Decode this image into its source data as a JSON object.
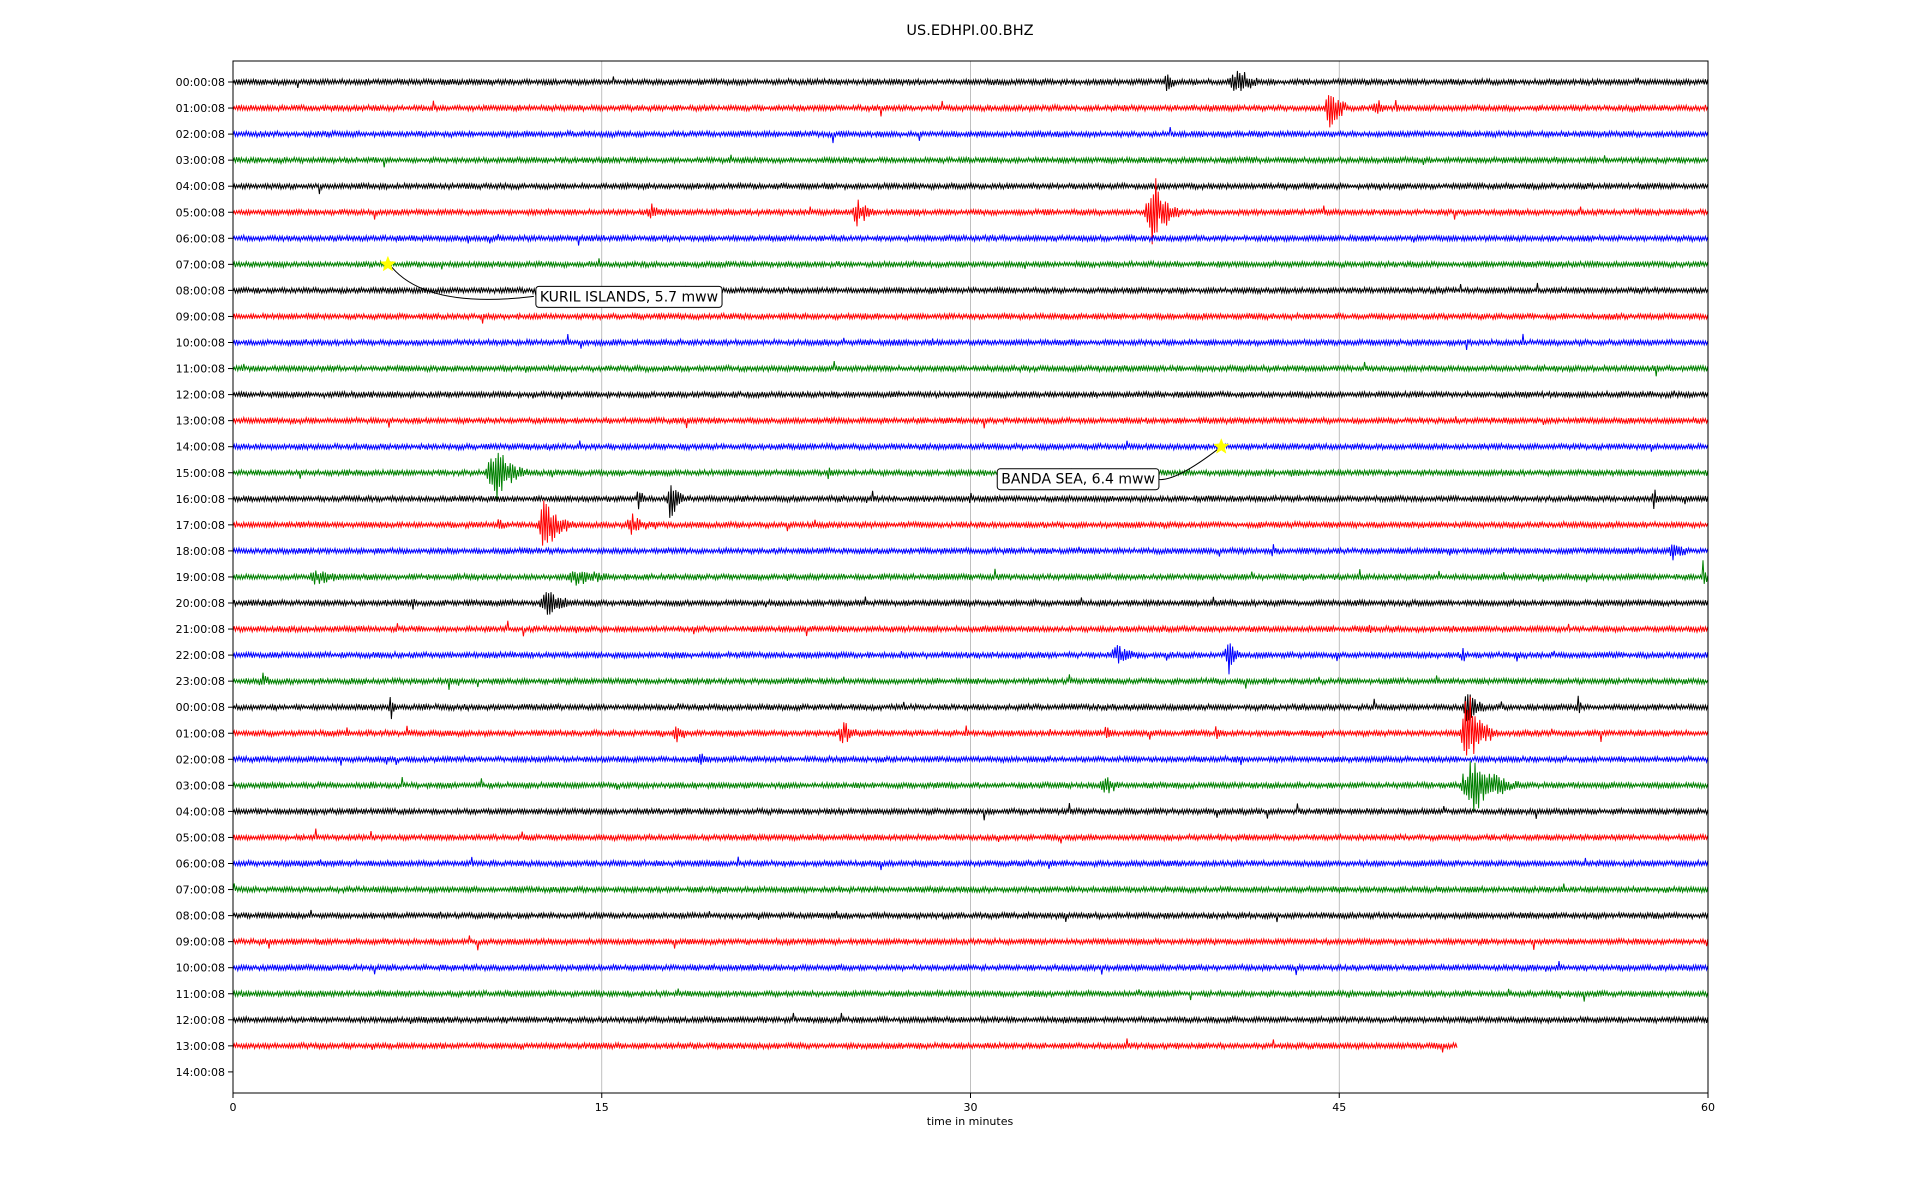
{
  "chart_data": {
    "type": "line",
    "title": "US.EDHPI.00.BHZ",
    "xlabel": "time in minutes",
    "xlim": [
      0,
      60
    ],
    "xticks": [
      0,
      15,
      30,
      45,
      60
    ],
    "grid": "vertical",
    "colors": [
      "#000000",
      "#ff0000",
      "#0000ff",
      "#008000"
    ],
    "row_labels": [
      "00:00:08",
      "01:00:08",
      "02:00:08",
      "03:00:08",
      "04:00:08",
      "05:00:08",
      "06:00:08",
      "07:00:08",
      "08:00:08",
      "09:00:08",
      "10:00:08",
      "11:00:08",
      "12:00:08",
      "13:00:08",
      "14:00:08",
      "15:00:08",
      "16:00:08",
      "17:00:08",
      "18:00:08",
      "19:00:08",
      "20:00:08",
      "21:00:08",
      "22:00:08",
      "23:00:08",
      "00:00:08",
      "01:00:08",
      "02:00:08",
      "03:00:08",
      "04:00:08",
      "05:00:08",
      "06:00:08",
      "07:00:08",
      "08:00:08",
      "09:00:08",
      "10:00:08",
      "11:00:08",
      "12:00:08",
      "13:00:08",
      "14:00:08"
    ],
    "last_trace_end_minutes": 49.8,
    "events": [
      {
        "row": 0,
        "t": 38.0,
        "amp": 0.7,
        "dur": 0.6
      },
      {
        "row": 0,
        "t": 40.8,
        "amp": 0.8,
        "dur": 1.6
      },
      {
        "row": 1,
        "t": 44.6,
        "amp": 1.0,
        "dur": 1.2
      },
      {
        "row": 1,
        "t": 46.5,
        "amp": 0.5,
        "dur": 0.8
      },
      {
        "row": 1,
        "t": 47.3,
        "amp": 0.8,
        "dur": 0.2
      },
      {
        "row": 5,
        "t": 25.4,
        "amp": 0.7,
        "dur": 1.2
      },
      {
        "row": 5,
        "t": 17.0,
        "amp": 0.4,
        "dur": 1.2
      },
      {
        "row": 5,
        "t": 37.4,
        "amp": 1.8,
        "dur": 1.4
      },
      {
        "row": 14,
        "t": 43.8,
        "amp": 0.3,
        "dur": 0.3
      },
      {
        "row": 15,
        "t": 10.6,
        "amp": 1.3,
        "dur": 1.8
      },
      {
        "row": 15,
        "t": 24.2,
        "amp": 0.5,
        "dur": 0.4
      },
      {
        "row": 16,
        "t": 17.8,
        "amp": 1.4,
        "dur": 0.8
      },
      {
        "row": 16,
        "t": 16.5,
        "amp": 0.6,
        "dur": 0.5
      },
      {
        "row": 16,
        "t": 30.0,
        "amp": 0.5,
        "dur": 0.3
      },
      {
        "row": 16,
        "t": 57.8,
        "amp": 0.7,
        "dur": 0.5
      },
      {
        "row": 17,
        "t": 12.7,
        "amp": 1.5,
        "dur": 1.4
      },
      {
        "row": 17,
        "t": 16.2,
        "amp": 0.5,
        "dur": 1.8
      },
      {
        "row": 17,
        "t": 10.8,
        "amp": 0.4,
        "dur": 0.8
      },
      {
        "row": 18,
        "t": 42.3,
        "amp": 0.3,
        "dur": 1.2
      },
      {
        "row": 18,
        "t": 58.6,
        "amp": 0.6,
        "dur": 1.2
      },
      {
        "row": 19,
        "t": 3.4,
        "amp": 0.4,
        "dur": 2.6
      },
      {
        "row": 19,
        "t": 14.0,
        "amp": 0.4,
        "dur": 3.4
      },
      {
        "row": 19,
        "t": 59.8,
        "amp": 1.0,
        "dur": 0.3
      },
      {
        "row": 20,
        "t": 12.8,
        "amp": 0.8,
        "dur": 1.6
      },
      {
        "row": 20,
        "t": 7.3,
        "amp": 0.6,
        "dur": 0.2
      },
      {
        "row": 21,
        "t": 46.2,
        "amp": 0.6,
        "dur": 0.2
      },
      {
        "row": 22,
        "t": 40.5,
        "amp": 1.0,
        "dur": 0.8
      },
      {
        "row": 22,
        "t": 36.0,
        "amp": 0.6,
        "dur": 1.6
      },
      {
        "row": 22,
        "t": 50.0,
        "amp": 0.6,
        "dur": 0.3
      },
      {
        "row": 23,
        "t": 1.2,
        "amp": 0.4,
        "dur": 1.0
      },
      {
        "row": 24,
        "t": 50.2,
        "amp": 1.2,
        "dur": 1.0
      },
      {
        "row": 24,
        "t": 6.4,
        "amp": 0.8,
        "dur": 0.3
      },
      {
        "row": 24,
        "t": 54.7,
        "amp": 0.7,
        "dur": 0.3
      },
      {
        "row": 25,
        "t": 50.2,
        "amp": 2.0,
        "dur": 1.4
      },
      {
        "row": 25,
        "t": 24.8,
        "amp": 0.7,
        "dur": 1.2
      },
      {
        "row": 25,
        "t": 18.0,
        "amp": 0.6,
        "dur": 0.8
      },
      {
        "row": 25,
        "t": 40.0,
        "amp": 0.5,
        "dur": 0.4
      },
      {
        "row": 25,
        "t": 35.5,
        "amp": 0.5,
        "dur": 0.4
      },
      {
        "row": 26,
        "t": 19.0,
        "amp": 0.3,
        "dur": 1.0
      },
      {
        "row": 27,
        "t": 50.4,
        "amp": 1.6,
        "dur": 2.2
      },
      {
        "row": 27,
        "t": 35.4,
        "amp": 0.6,
        "dur": 1.2
      },
      {
        "row": 27,
        "t": 5.6,
        "amp": 0.4,
        "dur": 0.4
      }
    ],
    "annotations": [
      {
        "label": "KURIL ISLANDS, 5.7 mww",
        "row": 7,
        "t": 6.3
      },
      {
        "label": "BANDA SEA, 6.4 mww",
        "row": 14,
        "t": 40.2
      }
    ],
    "marker_color": "#ffff00"
  }
}
